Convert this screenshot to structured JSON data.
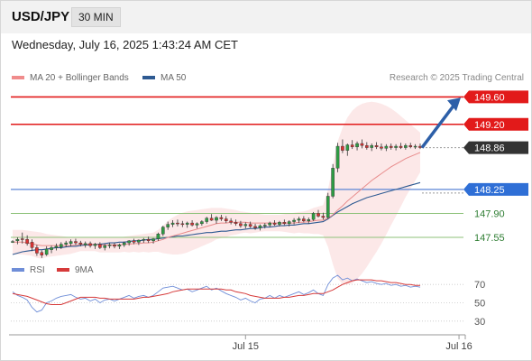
{
  "header": {
    "symbol": "USD/JPY",
    "timeframe": "30 MIN",
    "datetime": "Wednesday, July 16, 2025 1:43:24 AM CET"
  },
  "legend": {
    "ma20_label": "MA 20 + Bollinger Bands",
    "ma50_label": "MA 50",
    "copyright": "Research © 2025 Trading Central"
  },
  "rsi_legend": {
    "rsi_label": "RSI",
    "ma_label": "9MA"
  },
  "colors": {
    "resistance": "#e21a1a",
    "support_blue": "#5c86d6",
    "support_green": "#8ec27a",
    "current_price": "#333333",
    "candle_up": "#2e9d44",
    "candle_down": "#d93232",
    "ma20": "#e88c8c",
    "ma50": "#2e5a92",
    "bollinger_fill": "#fbe0e0",
    "rsi": "#6f8ed8",
    "rsi_ma": "#d63a3a",
    "arrow": "#2d5fa8"
  },
  "icons": {
    "arrow": "projection-arrow-icon"
  },
  "chart_data": [
    {
      "type": "candlestick",
      "title": "USD/JPY 30 MIN",
      "y_axis_side": "right",
      "ylim": [
        147.3,
        149.75
      ],
      "x_tick_labels": [
        "Jul 15",
        "Jul 16"
      ],
      "x_tick_slots": [
        48,
        92
      ],
      "levels": [
        {
          "value": 149.6,
          "label": "149.60",
          "kind": "resistance"
        },
        {
          "value": 149.2,
          "label": "149.20",
          "kind": "resistance"
        },
        {
          "value": 148.86,
          "label": "148.86",
          "kind": "current"
        },
        {
          "value": 148.25,
          "label": "148.25",
          "kind": "pivot"
        },
        {
          "value": 147.9,
          "label": "147.90",
          "kind": "support"
        },
        {
          "value": 147.55,
          "label": "147.55",
          "kind": "support"
        }
      ],
      "candles": [
        [
          147.49,
          147.51,
          147.47,
          147.49
        ],
        [
          147.5,
          147.55,
          147.45,
          147.52
        ],
        [
          147.53,
          147.62,
          147.46,
          147.52
        ],
        [
          147.52,
          147.58,
          147.43,
          147.46
        ],
        [
          147.48,
          147.52,
          147.35,
          147.4
        ],
        [
          147.4,
          147.44,
          147.28,
          147.32
        ],
        [
          147.33,
          147.36,
          147.25,
          147.29
        ],
        [
          147.3,
          147.42,
          147.28,
          147.38
        ],
        [
          147.37,
          147.43,
          147.32,
          147.4
        ],
        [
          147.4,
          147.46,
          147.36,
          147.42
        ],
        [
          147.41,
          147.48,
          147.38,
          147.45
        ],
        [
          147.45,
          147.5,
          147.41,
          147.47
        ],
        [
          147.46,
          147.52,
          147.42,
          147.49
        ],
        [
          147.49,
          147.53,
          147.44,
          147.47
        ],
        [
          147.47,
          147.5,
          147.42,
          147.45
        ],
        [
          147.44,
          147.49,
          147.4,
          147.46
        ],
        [
          147.46,
          147.49,
          147.4,
          147.43
        ],
        [
          147.43,
          147.47,
          147.38,
          147.45
        ],
        [
          147.45,
          147.48,
          147.38,
          147.4
        ],
        [
          147.4,
          147.45,
          147.36,
          147.43
        ],
        [
          147.43,
          147.47,
          147.39,
          147.44
        ],
        [
          147.44,
          147.47,
          147.39,
          147.42
        ],
        [
          147.42,
          147.46,
          147.38,
          147.44
        ],
        [
          147.44,
          147.49,
          147.41,
          147.47
        ],
        [
          147.47,
          147.51,
          147.43,
          147.5
        ],
        [
          147.5,
          147.53,
          147.45,
          147.48
        ],
        [
          147.48,
          147.52,
          147.44,
          147.51
        ],
        [
          147.51,
          147.54,
          147.47,
          147.52
        ],
        [
          147.52,
          147.56,
          147.47,
          147.5
        ],
        [
          147.5,
          147.54,
          147.46,
          147.53
        ],
        [
          147.53,
          147.62,
          147.5,
          147.6
        ],
        [
          147.6,
          147.72,
          147.57,
          147.7
        ],
        [
          147.7,
          147.78,
          147.66,
          147.74
        ],
        [
          147.74,
          147.8,
          147.7,
          147.76
        ],
        [
          147.76,
          147.81,
          147.71,
          147.75
        ],
        [
          147.75,
          147.79,
          147.7,
          147.74
        ],
        [
          147.74,
          147.78,
          147.69,
          147.76
        ],
        [
          147.76,
          147.8,
          147.71,
          147.73
        ],
        [
          147.73,
          147.77,
          147.68,
          147.75
        ],
        [
          147.75,
          147.8,
          147.72,
          147.78
        ],
        [
          147.78,
          147.85,
          147.75,
          147.83
        ],
        [
          147.83,
          147.89,
          147.79,
          147.8
        ],
        [
          147.8,
          147.86,
          147.75,
          147.84
        ],
        [
          147.84,
          147.88,
          147.79,
          147.82
        ],
        [
          147.82,
          147.86,
          147.76,
          147.79
        ],
        [
          147.79,
          147.83,
          147.74,
          147.77
        ],
        [
          147.77,
          147.81,
          147.72,
          147.75
        ],
        [
          147.75,
          147.79,
          147.69,
          147.72
        ],
        [
          147.72,
          147.77,
          147.68,
          147.74
        ],
        [
          147.74,
          147.78,
          147.69,
          147.71
        ],
        [
          147.71,
          147.75,
          147.66,
          147.69
        ],
        [
          147.69,
          147.74,
          147.65,
          147.72
        ],
        [
          147.72,
          147.76,
          147.68,
          147.73
        ],
        [
          147.73,
          147.78,
          147.7,
          147.76
        ],
        [
          147.76,
          147.8,
          147.72,
          147.74
        ],
        [
          147.74,
          147.79,
          147.71,
          147.77
        ],
        [
          147.77,
          147.81,
          147.73,
          147.75
        ],
        [
          147.75,
          147.8,
          147.71,
          147.78
        ],
        [
          147.78,
          147.83,
          147.74,
          147.8
        ],
        [
          147.8,
          147.85,
          147.76,
          147.82
        ],
        [
          147.82,
          147.86,
          147.77,
          147.79
        ],
        [
          147.79,
          147.84,
          147.75,
          147.81
        ],
        [
          147.81,
          147.92,
          147.79,
          147.9
        ],
        [
          147.9,
          147.95,
          147.84,
          147.86
        ],
        [
          147.86,
          147.91,
          147.81,
          147.84
        ],
        [
          147.84,
          148.2,
          147.82,
          148.15
        ],
        [
          148.15,
          148.62,
          148.12,
          148.56
        ],
        [
          148.56,
          148.93,
          148.5,
          148.88
        ],
        [
          148.88,
          148.98,
          148.78,
          148.82
        ],
        [
          148.82,
          148.92,
          148.74,
          148.9
        ],
        [
          148.9,
          148.97,
          148.84,
          148.87
        ],
        [
          148.87,
          148.95,
          148.82,
          148.92
        ],
        [
          148.92,
          148.98,
          148.85,
          148.89
        ],
        [
          148.89,
          148.94,
          148.83,
          148.86
        ],
        [
          148.86,
          148.92,
          148.81,
          148.89
        ],
        [
          148.89,
          148.94,
          148.84,
          148.87
        ],
        [
          148.87,
          148.92,
          148.82,
          148.85
        ],
        [
          148.85,
          148.91,
          148.81,
          148.88
        ],
        [
          148.88,
          148.92,
          148.83,
          148.86
        ],
        [
          148.86,
          148.91,
          148.82,
          148.88
        ],
        [
          148.88,
          148.93,
          148.84,
          148.86
        ],
        [
          148.86,
          148.92,
          148.83,
          148.89
        ],
        [
          148.89,
          148.93,
          148.85,
          148.87
        ],
        [
          148.87,
          148.91,
          148.84,
          148.88
        ],
        [
          148.88,
          148.92,
          148.84,
          148.86
        ]
      ],
      "ma20": [
        147.48,
        147.48,
        147.48,
        147.47,
        147.46,
        147.44,
        147.43,
        147.43,
        147.43,
        147.43,
        147.43,
        147.43,
        147.43,
        147.44,
        147.45,
        147.45,
        147.45,
        147.45,
        147.44,
        147.44,
        147.44,
        147.44,
        147.44,
        147.45,
        147.45,
        147.46,
        147.46,
        147.47,
        147.47,
        147.48,
        147.5,
        147.52,
        147.55,
        147.57,
        147.59,
        147.61,
        147.63,
        147.65,
        147.67,
        147.69,
        147.71,
        147.73,
        147.75,
        147.76,
        147.76,
        147.77,
        147.77,
        147.77,
        147.77,
        147.76,
        147.76,
        147.76,
        147.76,
        147.76,
        147.76,
        147.76,
        147.76,
        147.76,
        147.76,
        147.77,
        147.77,
        147.78,
        147.79,
        147.8,
        147.8,
        147.83,
        147.88,
        147.95,
        148.01,
        148.08,
        148.14,
        148.2,
        148.26,
        148.32,
        148.38,
        148.43,
        148.48,
        148.53,
        148.58,
        148.62,
        148.66,
        148.7,
        148.73,
        148.76,
        148.79
      ],
      "ma50": [
        147.3,
        147.32,
        147.34,
        147.35,
        147.36,
        147.37,
        147.37,
        147.38,
        147.39,
        147.4,
        147.4,
        147.41,
        147.42,
        147.42,
        147.43,
        147.44,
        147.44,
        147.45,
        147.45,
        147.46,
        147.47,
        147.47,
        147.48,
        147.48,
        147.49,
        147.5,
        147.5,
        147.51,
        147.52,
        147.52,
        147.53,
        147.54,
        147.55,
        147.56,
        147.57,
        147.57,
        147.58,
        147.59,
        147.6,
        147.61,
        147.62,
        147.62,
        147.63,
        147.64,
        147.64,
        147.65,
        147.66,
        147.66,
        147.67,
        147.68,
        147.68,
        147.69,
        147.7,
        147.7,
        147.71,
        147.72,
        147.72,
        147.73,
        147.73,
        147.74,
        147.75,
        147.75,
        147.76,
        147.77,
        147.78,
        147.82,
        147.87,
        147.92,
        147.96,
        148.0,
        148.04,
        148.07,
        148.1,
        148.13,
        148.15,
        148.17,
        148.19,
        148.21,
        148.23,
        148.25,
        148.27,
        148.29,
        148.31,
        148.33,
        148.35
      ],
      "boll_upper": [
        147.66,
        147.66,
        147.66,
        147.65,
        147.64,
        147.63,
        147.62,
        147.6,
        147.59,
        147.58,
        147.57,
        147.56,
        147.55,
        147.55,
        147.55,
        147.55,
        147.55,
        147.55,
        147.55,
        147.55,
        147.55,
        147.55,
        147.55,
        147.56,
        147.57,
        147.58,
        147.59,
        147.6,
        147.61,
        147.62,
        147.66,
        147.72,
        147.79,
        147.84,
        147.88,
        147.91,
        147.93,
        147.94,
        147.95,
        147.96,
        147.97,
        147.98,
        147.98,
        147.98,
        147.97,
        147.96,
        147.95,
        147.93,
        147.92,
        147.91,
        147.9,
        147.89,
        147.88,
        147.88,
        147.88,
        147.88,
        147.89,
        147.9,
        147.91,
        147.92,
        147.93,
        147.95,
        147.98,
        148.0,
        148.02,
        148.25,
        148.6,
        148.95,
        149.15,
        149.3,
        149.4,
        149.46,
        149.5,
        149.52,
        149.53,
        149.52,
        149.5,
        149.47,
        149.43,
        149.38,
        149.32,
        149.26,
        149.2,
        149.14,
        149.08
      ],
      "boll_lower": [
        147.3,
        147.3,
        147.3,
        147.29,
        147.28,
        147.25,
        147.24,
        147.26,
        147.27,
        147.28,
        147.29,
        147.3,
        147.31,
        147.33,
        147.35,
        147.35,
        147.35,
        147.35,
        147.33,
        147.33,
        147.33,
        147.33,
        147.33,
        147.34,
        147.33,
        147.34,
        147.33,
        147.34,
        147.33,
        147.34,
        147.34,
        147.32,
        147.31,
        147.3,
        147.3,
        147.31,
        147.33,
        147.36,
        147.39,
        147.42,
        147.45,
        147.48,
        147.52,
        147.54,
        147.55,
        147.58,
        147.59,
        147.61,
        147.62,
        147.61,
        147.62,
        147.63,
        147.64,
        147.64,
        147.64,
        147.64,
        147.63,
        147.62,
        147.61,
        147.62,
        147.61,
        147.61,
        147.6,
        147.6,
        147.58,
        147.41,
        147.16,
        146.95,
        146.87,
        146.86,
        146.88,
        146.94,
        147.02,
        147.12,
        147.23,
        147.34,
        147.46,
        147.59,
        147.73,
        147.86,
        148.0,
        148.14,
        148.26,
        148.38,
        148.5
      ]
    },
    {
      "type": "line",
      "title": "RSI",
      "ylim": [
        20,
        80
      ],
      "y_tick_labels": [
        "70",
        "50",
        "30"
      ],
      "y_tick_values": [
        70,
        50,
        30
      ],
      "series": [
        {
          "name": "RSI",
          "values": [
            62,
            58,
            56,
            53,
            45,
            40,
            42,
            50,
            52,
            55,
            57,
            58,
            59,
            56,
            54,
            55,
            52,
            54,
            50,
            53,
            54,
            52,
            54,
            56,
            58,
            55,
            57,
            58,
            56,
            58,
            62,
            66,
            67,
            68,
            66,
            64,
            65,
            62,
            64,
            66,
            68,
            64,
            66,
            63,
            60,
            58,
            56,
            53,
            55,
            52,
            50,
            54,
            55,
            58,
            55,
            58,
            56,
            58,
            60,
            62,
            59,
            61,
            64,
            60,
            58,
            70,
            77,
            80,
            75,
            77,
            74,
            76,
            74,
            72,
            73,
            71,
            70,
            71,
            69,
            70,
            68,
            69,
            67,
            68,
            67
          ]
        },
        {
          "name": "9MA",
          "values": [
            60,
            59,
            58,
            57,
            55,
            53,
            51,
            49,
            48,
            48,
            48,
            50,
            52,
            54,
            56,
            56,
            56,
            56,
            55,
            55,
            54,
            54,
            54,
            54,
            54,
            54,
            55,
            56,
            56,
            57,
            58,
            59,
            60,
            62,
            63,
            64,
            65,
            65,
            65,
            65,
            65,
            65,
            65,
            65,
            64,
            64,
            62,
            61,
            60,
            58,
            57,
            56,
            55,
            55,
            55,
            55,
            56,
            56,
            57,
            58,
            58,
            59,
            60,
            60,
            60,
            62,
            64,
            67,
            70,
            72,
            74,
            75,
            75,
            75,
            75,
            74,
            74,
            73,
            72,
            72,
            71,
            70,
            70,
            69,
            69
          ]
        }
      ]
    }
  ]
}
